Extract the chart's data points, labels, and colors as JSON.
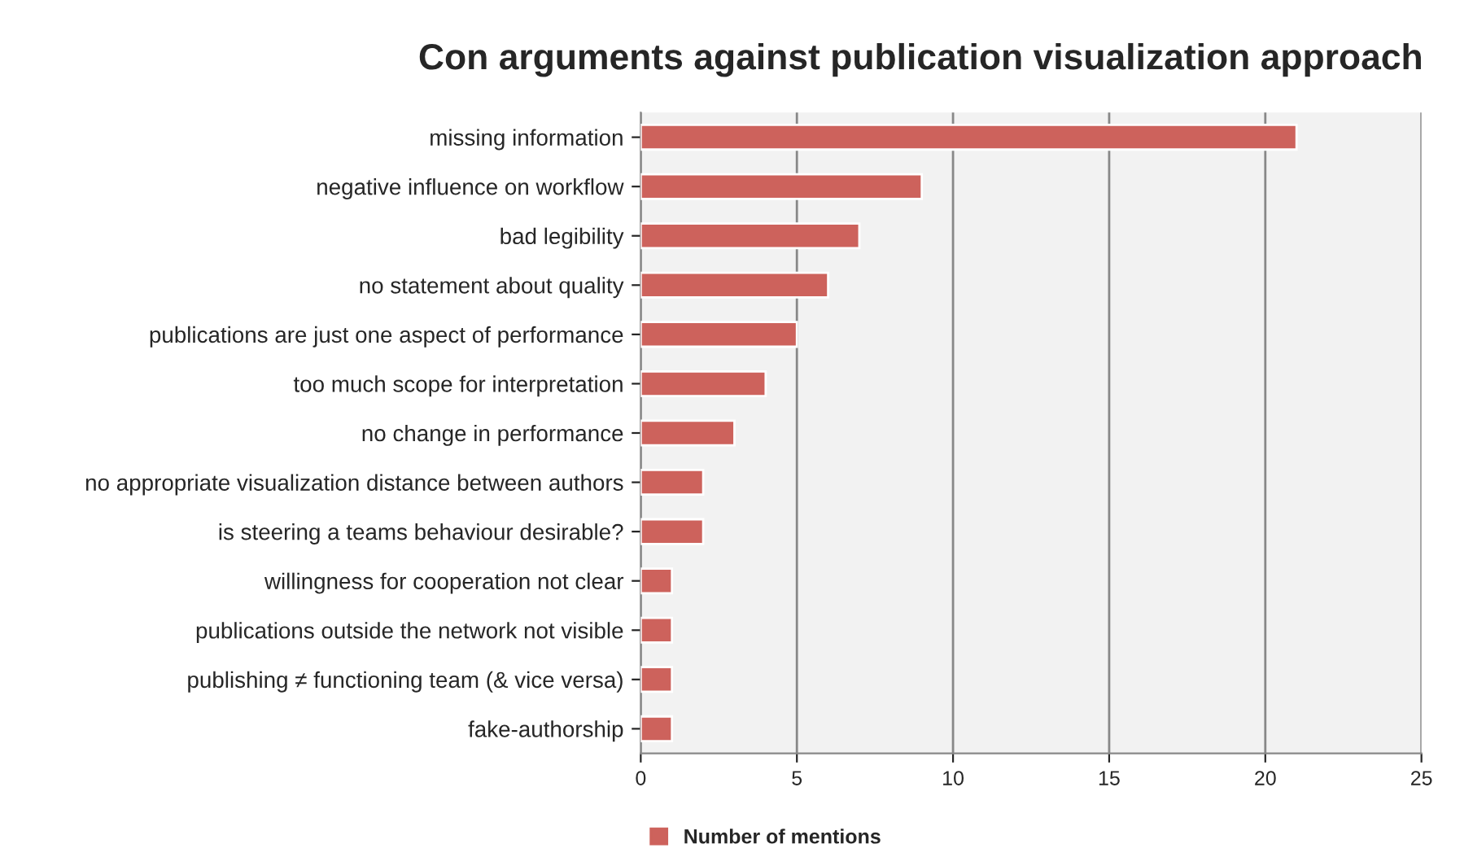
{
  "chart_data": {
    "type": "bar",
    "orientation": "horizontal",
    "title": "Con arguments against publication visualization approach",
    "categories": [
      "missing information",
      "negative influence on workflow",
      "bad legibility",
      "no statement about quality",
      "publications are just one aspect of performance",
      "too much scope for interpretation",
      "no change in performance",
      "no appropriate visualization distance between authors",
      "is steering a teams behaviour desirable?",
      "willingness for cooperation not clear",
      "publications outside the network not visible",
      "publishing ≠ functioning team (& vice versa)",
      "fake-authorship"
    ],
    "series": [
      {
        "name": "Number of mentions",
        "color": "#cd625c",
        "values": [
          21,
          9,
          7,
          6,
          5,
          4,
          3,
          2,
          2,
          1,
          1,
          1,
          1
        ]
      }
    ],
    "xlim": [
      0,
      25
    ],
    "xticks": [
      0,
      5,
      10,
      15,
      20,
      25
    ],
    "grid": "x",
    "legend": "bottom"
  }
}
